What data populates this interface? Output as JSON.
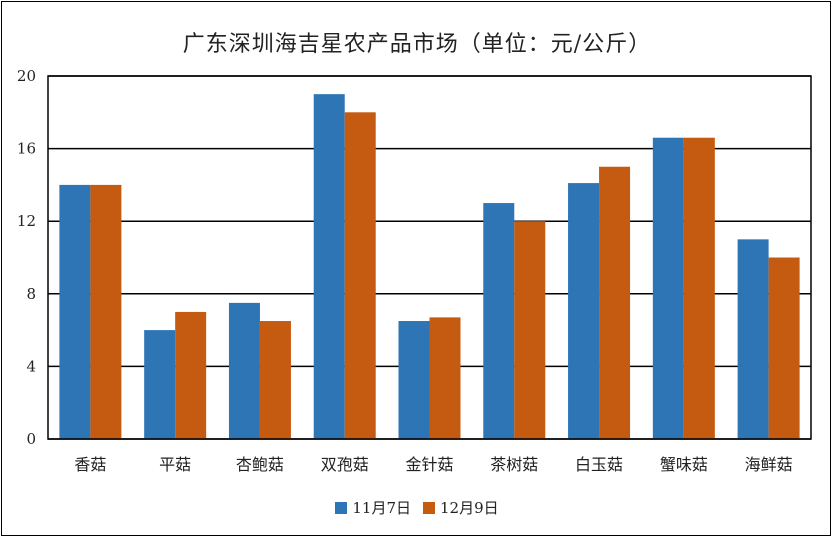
{
  "chart_data": {
    "type": "bar",
    "title": "广东深圳海吉星农产品市场（单位：元/公斤）",
    "xlabel": "",
    "ylabel": "",
    "categories": [
      "香菇",
      "平菇",
      "杏鲍菇",
      "双孢菇",
      "金针菇",
      "茶树菇",
      "白玉菇",
      "蟹味菇",
      "海鲜菇"
    ],
    "series": [
      {
        "name": "11月7日",
        "color": "#2e75b6",
        "values": [
          14,
          6,
          7.5,
          19,
          6.5,
          13,
          14.1,
          16.6,
          11
        ]
      },
      {
        "name": "12月9日",
        "color": "#c55a11",
        "values": [
          14,
          7,
          6.5,
          18,
          6.7,
          12,
          15,
          16.6,
          10
        ]
      }
    ],
    "ylim": [
      0,
      20
    ],
    "yticks": [
      0,
      4,
      8,
      12,
      16,
      20
    ],
    "grid": true,
    "legend_position": "bottom"
  }
}
